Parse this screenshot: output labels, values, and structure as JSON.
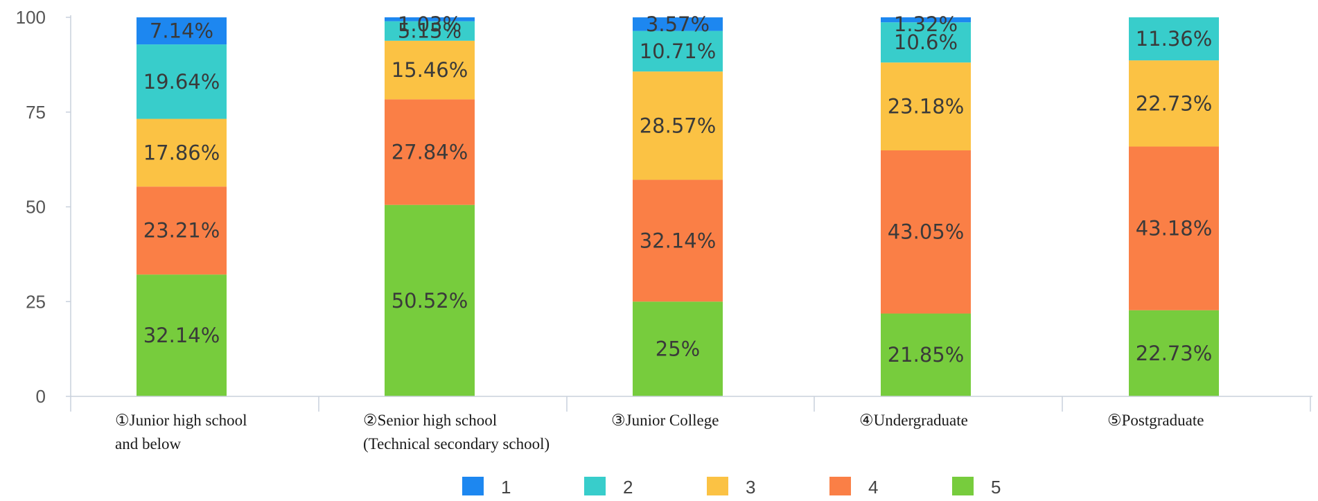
{
  "chart_data": {
    "type": "bar",
    "stacked": true,
    "title": "",
    "xlabel": "",
    "ylabel": "",
    "ylim": [
      0,
      100
    ],
    "yticks": [
      "0",
      "25",
      "50",
      "75",
      "100"
    ],
    "categories": [
      [
        "①Junior high school",
        "and below"
      ],
      [
        "②Senior high school",
        "(Technical secondary school)"
      ],
      [
        "③Junior College"
      ],
      [
        "④Undergraduate"
      ],
      [
        "⑤Postgraduate"
      ]
    ],
    "series": [
      {
        "name": "5",
        "color": "#77cc3d",
        "values": [
          32.14,
          50.52,
          25,
          21.85,
          22.73
        ],
        "labels": [
          "32.14%",
          "50.52%",
          "25%",
          "21.85%",
          "22.73%"
        ]
      },
      {
        "name": "4",
        "color": "#fa7f46",
        "values": [
          23.21,
          27.84,
          32.14,
          43.05,
          43.18
        ],
        "labels": [
          "23.21%",
          "27.84%",
          "32.14%",
          "43.05%",
          "43.18%"
        ]
      },
      {
        "name": "3",
        "color": "#fbc244",
        "values": [
          17.86,
          15.46,
          28.57,
          23.18,
          22.73
        ],
        "labels": [
          "17.86%",
          "15.46%",
          "28.57%",
          "23.18%",
          "22.73%"
        ]
      },
      {
        "name": "2",
        "color": "#38cdcb",
        "values": [
          19.64,
          5.15,
          10.71,
          10.6,
          11.36
        ],
        "labels": [
          "19.64%",
          "5.15%",
          "10.71%",
          "10.6%",
          "11.36%"
        ]
      },
      {
        "name": "1",
        "color": "#1d87f0",
        "values": [
          7.14,
          1.03,
          3.57,
          1.32,
          0
        ],
        "labels": [
          "7.14%",
          "1.03%",
          "3.57%",
          "1.32%",
          ""
        ]
      }
    ],
    "legend": {
      "position": "bottom",
      "order": [
        "1",
        "2",
        "3",
        "4",
        "5"
      ]
    },
    "grid": false
  }
}
